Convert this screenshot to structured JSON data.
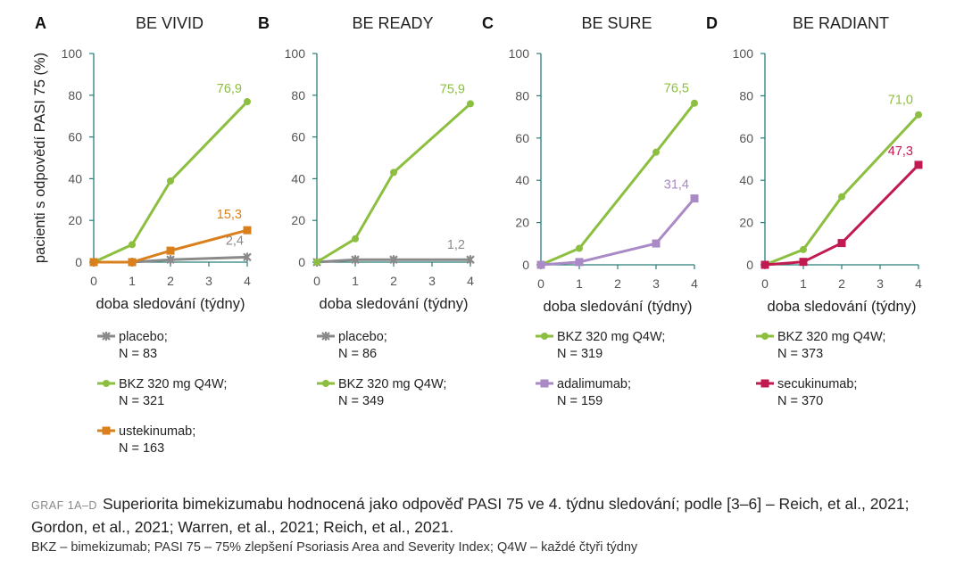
{
  "colors": {
    "axis": "#2a7d78",
    "placebo": "#8a8a8a",
    "bkz": "#8cbf3f",
    "ustekinumab": "#d9801c",
    "adalimumab": "#a989c6",
    "secukinumab": "#c11a50"
  },
  "chart_data": [
    {
      "type": "line",
      "panel": "A",
      "title": "BE VIVID",
      "xlabel": "doba sledování (týdny)",
      "ylabel": "pacienti s odpovědí PASI 75 (%)",
      "xticks": [
        "0",
        "1",
        "2",
        "3",
        "4"
      ],
      "yticks": [
        "0",
        "20",
        "40",
        "60",
        "80",
        "100"
      ],
      "xlim": [
        0,
        4
      ],
      "ylim": [
        0,
        100
      ],
      "series": [
        {
          "name": "placebo;",
          "n": "N = 83",
          "color": "#8a8a8a",
          "marker": "x",
          "x": [
            0,
            1,
            2,
            4
          ],
          "y": [
            0,
            0,
            1.2,
            2.4
          ],
          "end_label": "2,4"
        },
        {
          "name": "BKZ 320 mg Q4W;",
          "n": "N = 321",
          "color": "#8cbf3f",
          "marker": "circle",
          "x": [
            0,
            1,
            2,
            4
          ],
          "y": [
            0,
            8.4,
            38.9,
            76.9
          ],
          "end_label": "76,9"
        },
        {
          "name": "ustekinumab;",
          "n": "N = 163",
          "color": "#d9801c",
          "marker": "square",
          "x": [
            0,
            1,
            2,
            4
          ],
          "y": [
            0,
            0,
            5.5,
            15.3
          ],
          "end_label": "15,3"
        }
      ]
    },
    {
      "type": "line",
      "panel": "B",
      "title": "BE READY",
      "xlabel": "doba sledování (týdny)",
      "ylabel": "",
      "xticks": [
        "0",
        "1",
        "2",
        "3",
        "4"
      ],
      "yticks": [
        "0",
        "20",
        "40",
        "60",
        "80",
        "100"
      ],
      "xlim": [
        0,
        4
      ],
      "ylim": [
        0,
        100
      ],
      "series": [
        {
          "name": "placebo;",
          "n": "N = 86",
          "color": "#8a8a8a",
          "marker": "x",
          "x": [
            0,
            1,
            2,
            4
          ],
          "y": [
            0,
            1.2,
            1.2,
            1.2
          ],
          "end_label": "1,2"
        },
        {
          "name": "BKZ 320 mg Q4W;",
          "n": "N = 349",
          "color": "#8cbf3f",
          "marker": "circle",
          "x": [
            0,
            1,
            2,
            4
          ],
          "y": [
            0,
            11.2,
            43.0,
            75.9
          ],
          "end_label": "75,9"
        }
      ]
    },
    {
      "type": "line",
      "panel": "C",
      "title": "BE SURE",
      "xlabel": "doba sledování (týdny)",
      "ylabel": "",
      "xticks": [
        "0",
        "1",
        "2",
        "3",
        "4"
      ],
      "yticks": [
        "0",
        "20",
        "40",
        "60",
        "80",
        "100"
      ],
      "xlim": [
        0,
        4
      ],
      "ylim": [
        0,
        100
      ],
      "series": [
        {
          "name": "BKZ 320 mg Q4W;",
          "n": "N = 319",
          "color": "#8cbf3f",
          "marker": "circle",
          "x": [
            0,
            1,
            3,
            4
          ],
          "y": [
            0,
            7.8,
            53.3,
            76.5
          ],
          "end_label": "76,5"
        },
        {
          "name": "adalimumab;",
          "n": "N = 159",
          "color": "#a989c6",
          "marker": "square",
          "x": [
            0,
            1,
            3,
            4
          ],
          "y": [
            0,
            1.3,
            10.1,
            31.4
          ],
          "end_label": "31,4"
        }
      ]
    },
    {
      "type": "line",
      "panel": "D",
      "title": "BE RADIANT",
      "xlabel": "doba sledování (týdny)",
      "ylabel": "",
      "xticks": [
        "0",
        "1",
        "2",
        "3",
        "4"
      ],
      "yticks": [
        "0",
        "20",
        "40",
        "60",
        "80",
        "100"
      ],
      "xlim": [
        0,
        4
      ],
      "ylim": [
        0,
        100
      ],
      "series": [
        {
          "name": "BKZ 320 mg Q4W;",
          "n": "N = 373",
          "color": "#8cbf3f",
          "marker": "circle",
          "x": [
            0,
            1,
            2,
            4
          ],
          "y": [
            0,
            7.2,
            32.2,
            71.0
          ],
          "end_label": "71,0"
        },
        {
          "name": "secukinumab;",
          "n": "N = 370",
          "color": "#c11a50",
          "marker": "square",
          "x": [
            0,
            1,
            2,
            4
          ],
          "y": [
            0,
            1.4,
            10.3,
            47.3
          ],
          "end_label": "47,3"
        }
      ]
    }
  ],
  "caption": {
    "tag": "GRAF 1A–D",
    "text": "Superiorita bimekizumabu hodnocená jako odpověď PASI 75 ve 4. týdnu sledování; podle [3–6] – Reich, et al., 2021; Gordon, et al., 2021; Warren, et al., 2021; Reich, et al., 2021.",
    "abbreviations": "BKZ – bimekizumab; PASI 75 – 75% zlepšení Psoriasis Area and Severity Index; Q4W – každé čtyři týdny"
  }
}
